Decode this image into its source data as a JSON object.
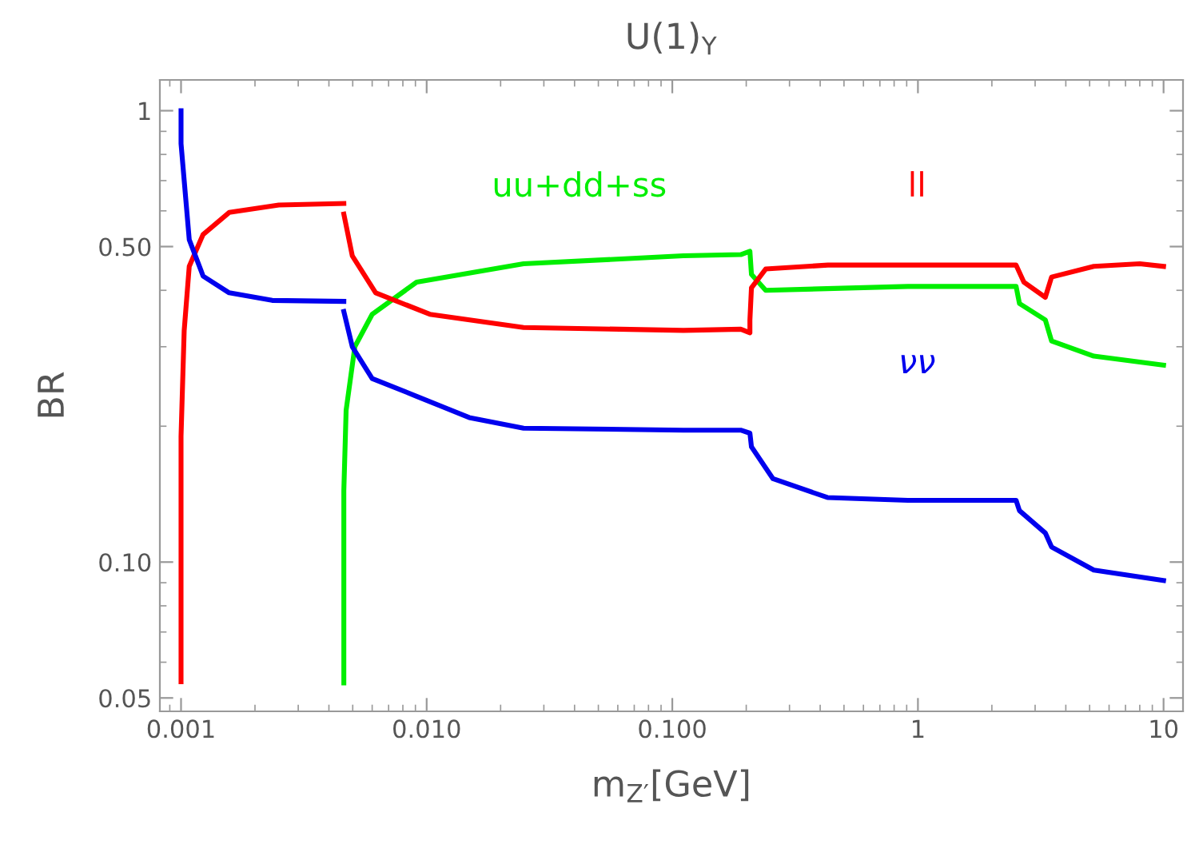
{
  "chart_data": {
    "type": "line",
    "title": "U(1)$_{Y}$",
    "xlabel": "m$_{Z′}$[GeV]",
    "ylabel": "BR",
    "log": "xy",
    "xlim": [
      0.00082,
      12
    ],
    "ylim": [
      0.0467,
      1.17
    ],
    "xticks": [
      0.001,
      {
        "value": 0.01,
        "label": "0.010"
      },
      {
        "value": 0.1,
        "label": "0.100"
      },
      1,
      10
    ],
    "yticks": [
      0.05,
      {
        "value": 0.1,
        "label": "0.10"
      },
      {
        "value": 0.5,
        "label": "0.50"
      },
      1
    ],
    "grid": false,
    "legend": false,
    "line_style": "solid",
    "marker": "none",
    "series": [
      {
        "name": "uu+dd+ss",
        "color": "#00ee00",
        "x": [
          0.0046,
          0.0046,
          0.0047,
          0.0051,
          0.006,
          0.0091,
          0.0248,
          0.111,
          0.19,
          0.207,
          0.21,
          0.24,
          0.91,
          2.51,
          2.59,
          3.3,
          3.5,
          5.2,
          10
        ],
        "values": [
          0.054,
          0.144,
          0.217,
          0.3,
          0.354,
          0.417,
          0.458,
          0.477,
          0.48,
          0.488,
          0.434,
          0.4,
          0.408,
          0.408,
          0.374,
          0.344,
          0.309,
          0.286,
          0.273
        ]
      },
      {
        "name": "ll",
        "color": "#ff0000",
        "x": [
          0.001,
          0.001,
          0.00103,
          0.00108,
          0.00123,
          0.00157,
          0.0025,
          0.0046
        ],
        "values": [
          0.0543,
          0.19,
          0.326,
          0.452,
          0.532,
          0.595,
          0.618,
          0.623
        ]
      },
      {
        "name": "νν",
        "color": "#0000ee",
        "x": [
          0.001,
          0.001,
          0.00108,
          0.00123,
          0.00157,
          0.00235,
          0.0046
        ],
        "values": [
          1.0,
          0.845,
          0.518,
          0.43,
          0.395,
          0.38,
          0.378
        ]
      },
      {
        "color": "#ff0000",
        "x": [
          0.0046,
          0.00498,
          0.0062,
          0.0103,
          0.0248,
          0.111,
          0.19,
          0.207,
          0.207,
          0.21,
          0.24,
          0.43,
          2.51,
          2.7,
          3.3,
          3.5,
          5.2,
          8.0,
          10
        ],
        "values": [
          0.59,
          0.477,
          0.395,
          0.354,
          0.331,
          0.326,
          0.328,
          0.322,
          0.344,
          0.405,
          0.446,
          0.455,
          0.455,
          0.417,
          0.386,
          0.428,
          0.452,
          0.458,
          0.452
        ]
      },
      {
        "color": "#0000ee",
        "x": [
          0.0046,
          0.00498,
          0.006,
          0.0091,
          0.0149,
          0.0248,
          0.111,
          0.19,
          0.207,
          0.21,
          0.257,
          0.428,
          0.91,
          2.51,
          2.59,
          3.3,
          3.5,
          5.2,
          10
        ],
        "values": [
          0.359,
          0.3,
          0.255,
          0.233,
          0.209,
          0.198,
          0.196,
          0.196,
          0.193,
          0.18,
          0.153,
          0.139,
          0.137,
          0.137,
          0.13,
          0.116,
          0.108,
          0.096,
          0.091
        ]
      }
    ]
  }
}
